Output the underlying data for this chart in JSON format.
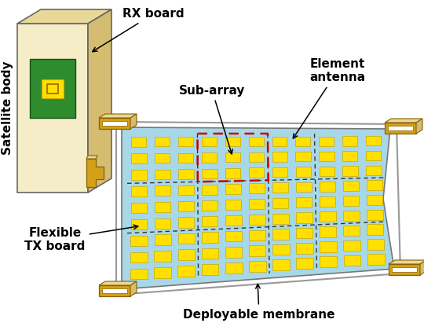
{
  "sat_body_color": "#F5ECC8",
  "sat_top_color": "#E8D89A",
  "sat_side_color": "#D4BC70",
  "sat_edge_color": "#666666",
  "green_board_color": "#2E8B2E",
  "yellow_color": "#FFE000",
  "yellow_edge": "#C8A800",
  "membrane_fill": "#A8D8E8",
  "membrane_edge": "#888888",
  "white_border": "#FFFFFF",
  "bracket_color": "#D4A017",
  "bracket_edge": "#8B6000",
  "dashed_black": "#333333",
  "dashed_red": "#CC0000",
  "text_color": "#000000",
  "labels": {
    "rx_board": "RX board",
    "satellite_body": "Satellite body",
    "sub_array": "Sub-array",
    "element_antenna": "Element\nantenna",
    "flexible_tx": "Flexible\nTX board",
    "deployable": "Deployable membrane"
  },
  "figsize": [
    5.4,
    4.11
  ],
  "dpi": 100
}
